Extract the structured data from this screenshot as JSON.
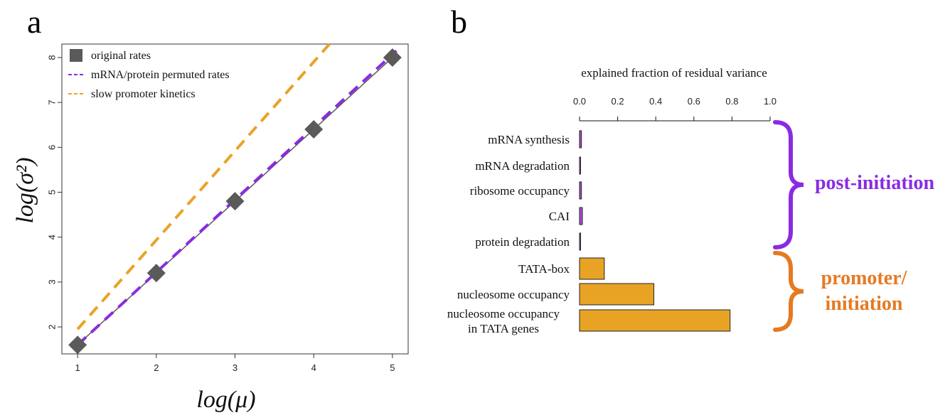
{
  "panels": {
    "a": "a",
    "b": "b"
  },
  "colors": {
    "original": "#5a5a5a",
    "permuted": "#8a2be2",
    "slow": "#e8a325",
    "post": "#8a2be2",
    "post_bar": "#b04ad6",
    "promoter": "#e57a22",
    "promoter_bar": "#e8a325"
  },
  "chart_data": [
    {
      "type": "scatter",
      "xlabel": "log(μ)",
      "ylabel": "log(σ²)",
      "xlim": [
        0.8,
        5.2
      ],
      "ylim": [
        1.4,
        8.3
      ],
      "xticks": [
        1,
        2,
        3,
        4,
        5
      ],
      "yticks": [
        2,
        3,
        4,
        5,
        6,
        7,
        8
      ],
      "grid": false,
      "legend_position": "top-left",
      "series": [
        {
          "name": "original rates",
          "kind": "points",
          "x": [
            1,
            2,
            3,
            4,
            5
          ],
          "y": [
            1.6,
            3.2,
            4.8,
            6.4,
            8.0
          ]
        },
        {
          "name": "mRNA/protein permuted rates",
          "kind": "dashed-line",
          "x": [
            1,
            5.05
          ],
          "y": [
            1.6,
            8.15
          ]
        },
        {
          "name": "slow promoter kinetics",
          "kind": "dashed-line",
          "x": [
            1,
            4.2
          ],
          "y": [
            1.95,
            8.3
          ]
        }
      ]
    },
    {
      "type": "bar",
      "orientation": "horizontal",
      "title": "explained fraction of residual variance",
      "xlim": [
        0,
        1.0
      ],
      "xticks": [
        "0.0",
        "0.2",
        "0.4",
        "0.6",
        "0.8",
        "1.0"
      ],
      "categories": [
        "mRNA synthesis",
        "mRNA degradation",
        "ribosome occupancy",
        "CAI",
        "protein degradation",
        "TATA-box",
        "nucleosome occupancy",
        "nucleosome occupancy\nin TATA genes"
      ],
      "values": [
        0.01,
        0.005,
        0.01,
        0.015,
        0.002,
        0.13,
        0.39,
        0.79
      ],
      "groups": [
        {
          "label": "post-initiation",
          "members": [
            0,
            1,
            2,
            3,
            4
          ]
        },
        {
          "label": "promoter/\ninitiation",
          "members": [
            5,
            6,
            7
          ]
        }
      ]
    }
  ]
}
